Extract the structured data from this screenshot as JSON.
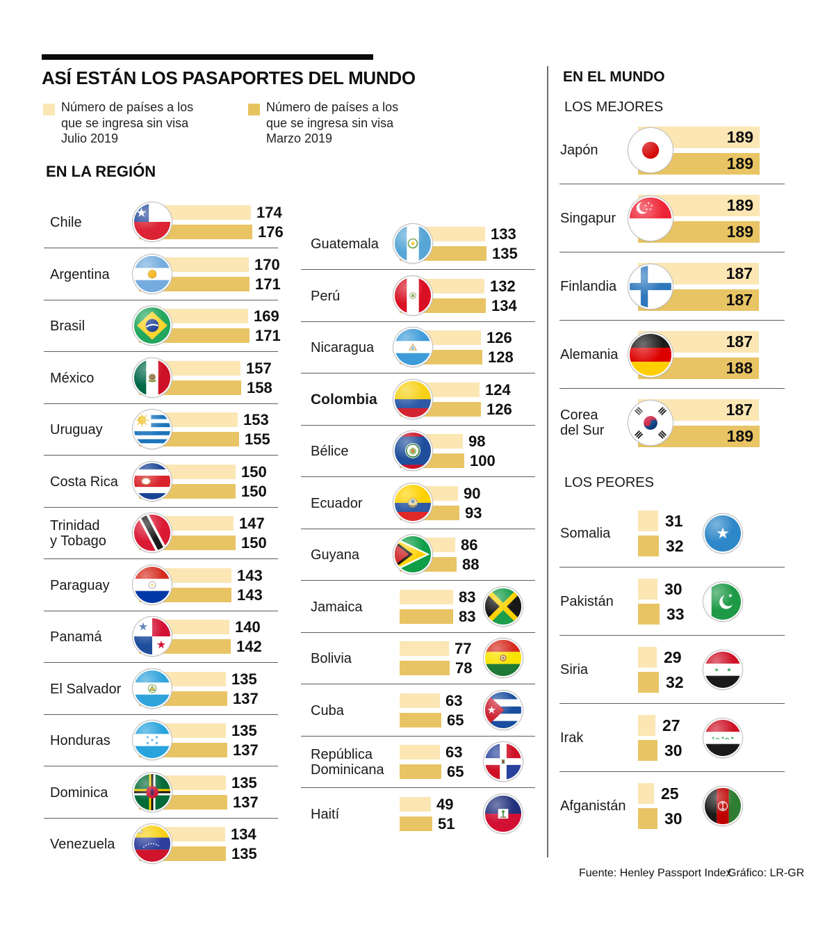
{
  "header": {
    "title": "ASÍ ESTÁN LOS PASAPORTES DEL MUNDO"
  },
  "legend": {
    "items": [
      {
        "id": "julio",
        "color": "#FBE6B4",
        "label": "Número de países a los\nque se ingresa sin visa\nJulio 2019"
      },
      {
        "id": "marzo",
        "color": "#E7C35F",
        "label": "Número de países a los\nque se ingresa sin visa\nMarzo 2019"
      }
    ]
  },
  "colors": {
    "julio_bar": "#FBE6B4",
    "marzo_bar": "#E8C464"
  },
  "region": {
    "title": "EN LA REGIÓN",
    "col1": [
      {
        "name": "Chile",
        "flag": "chile",
        "julio": 174,
        "marzo": 176
      },
      {
        "name": "Argentina",
        "flag": "argentina",
        "julio": 170,
        "marzo": 171
      },
      {
        "name": "Brasil",
        "flag": "brasil",
        "julio": 169,
        "marzo": 171
      },
      {
        "name": "México",
        "flag": "mexico",
        "julio": 157,
        "marzo": 158
      },
      {
        "name": "Uruguay",
        "flag": "uruguay",
        "julio": 153,
        "marzo": 155
      },
      {
        "name": "Costa Rica",
        "flag": "costa_rica",
        "julio": 150,
        "marzo": 150
      },
      {
        "name": "Trinidad\ny Tobago",
        "flag": "trinidad_tobago",
        "julio": 147,
        "marzo": 150
      },
      {
        "name": "Paraguay",
        "flag": "paraguay",
        "julio": 143,
        "marzo": 143
      },
      {
        "name": "Panamá",
        "flag": "panama",
        "julio": 140,
        "marzo": 142
      },
      {
        "name": "El Salvador",
        "flag": "el_salvador",
        "julio": 135,
        "marzo": 137
      },
      {
        "name": "Honduras",
        "flag": "honduras",
        "julio": 135,
        "marzo": 137
      },
      {
        "name": "Dominica",
        "flag": "dominica",
        "julio": 135,
        "marzo": 137
      },
      {
        "name": "Venezuela",
        "flag": "venezuela",
        "julio": 134,
        "marzo": 135
      }
    ],
    "col2": [
      {
        "name": "Guatemala",
        "flag": "guatemala",
        "julio": 133,
        "marzo": 135
      },
      {
        "name": "Perú",
        "flag": "peru",
        "julio": 132,
        "marzo": 134
      },
      {
        "name": "Nicaragua",
        "flag": "nicaragua",
        "julio": 126,
        "marzo": 128
      },
      {
        "name": "Colombia",
        "flag": "colombia",
        "julio": 124,
        "marzo": 126,
        "bold": true
      },
      {
        "name": "Bélice",
        "flag": "belice",
        "julio": 98,
        "marzo": 100
      },
      {
        "name": "Ecuador",
        "flag": "ecuador",
        "julio": 90,
        "marzo": 93
      },
      {
        "name": "Guyana",
        "flag": "guyana",
        "julio": 86,
        "marzo": 88
      },
      {
        "name": "Jamaica",
        "flag": "jamaica",
        "julio": 83,
        "marzo": 83,
        "flag_side": "right"
      },
      {
        "name": "Bolivia",
        "flag": "bolivia",
        "julio": 77,
        "marzo": 78,
        "flag_side": "right"
      },
      {
        "name": "Cuba",
        "flag": "cuba",
        "julio": 63,
        "marzo": 65,
        "flag_side": "right"
      },
      {
        "name": "República\nDominicana",
        "flag": "dominican_republic",
        "julio": 63,
        "marzo": 65,
        "flag_side": "right"
      },
      {
        "name": "Haití",
        "flag": "haiti",
        "julio": 49,
        "marzo": 51,
        "flag_side": "right"
      }
    ]
  },
  "world": {
    "title": "EN EL MUNDO",
    "best_label": "LOS MEJORES",
    "worst_label": "LOS PEORES",
    "best": [
      {
        "name": "Japón",
        "flag": "japan",
        "julio": 189,
        "marzo": 189
      },
      {
        "name": "Singapur",
        "flag": "singapore",
        "julio": 189,
        "marzo": 189
      },
      {
        "name": "Finlandia",
        "flag": "finland",
        "julio": 187,
        "marzo": 187
      },
      {
        "name": "Alemania",
        "flag": "germany",
        "julio": 187,
        "marzo": 188
      },
      {
        "name": "Corea\ndel Sur",
        "flag": "south_korea",
        "julio": 187,
        "marzo": 189
      }
    ],
    "worst": [
      {
        "name": "Somalia",
        "flag": "somalia",
        "julio": 31,
        "marzo": 32
      },
      {
        "name": "Pakistán",
        "flag": "pakistan",
        "julio": 30,
        "marzo": 33
      },
      {
        "name": "Siria",
        "flag": "syria",
        "julio": 29,
        "marzo": 32
      },
      {
        "name": "Irak",
        "flag": "iraq",
        "julio": 27,
        "marzo": 30
      },
      {
        "name": "Afganistán",
        "flag": "afghanistan",
        "julio": 25,
        "marzo": 30
      }
    ]
  },
  "footer": {
    "source": "Fuente: Henley Passport Index",
    "credit": "Gráfico: LR-GR"
  },
  "chart_data": {
    "type": "bar",
    "orientation": "horizontal",
    "title": "ASÍ ESTÁN LOS PASAPORTES DEL MUNDO",
    "series_labels": [
      "Número de países a los que se ingresa sin visa Julio 2019",
      "Número de países a los que se ingresa sin visa Marzo 2019"
    ],
    "xlim": [
      0,
      189
    ],
    "grid": false,
    "legend_position": "top",
    "groups": [
      {
        "name": "EN LA REGIÓN",
        "categories": [
          "Chile",
          "Argentina",
          "Brasil",
          "México",
          "Uruguay",
          "Costa Rica",
          "Trinidad y Tobago",
          "Paraguay",
          "Panamá",
          "El Salvador",
          "Honduras",
          "Dominica",
          "Venezuela",
          "Guatemala",
          "Perú",
          "Nicaragua",
          "Colombia",
          "Bélice",
          "Ecuador",
          "Guyana",
          "Jamaica",
          "Bolivia",
          "Cuba",
          "República Dominicana",
          "Haití"
        ],
        "series": [
          {
            "name": "Julio 2019",
            "values": [
              174,
              170,
              169,
              157,
              153,
              150,
              147,
              143,
              140,
              135,
              135,
              135,
              134,
              133,
              132,
              126,
              124,
              98,
              90,
              86,
              83,
              77,
              63,
              63,
              49
            ]
          },
          {
            "name": "Marzo 2019",
            "values": [
              176,
              171,
              171,
              158,
              155,
              150,
              150,
              143,
              142,
              137,
              137,
              137,
              135,
              135,
              134,
              128,
              126,
              100,
              93,
              88,
              83,
              78,
              65,
              65,
              51
            ]
          }
        ]
      },
      {
        "name": "EN EL MUNDO — LOS MEJORES",
        "categories": [
          "Japón",
          "Singapur",
          "Finlandia",
          "Alemania",
          "Corea del Sur"
        ],
        "series": [
          {
            "name": "Julio 2019",
            "values": [
              189,
              189,
              187,
              187,
              187
            ]
          },
          {
            "name": "Marzo 2019",
            "values": [
              189,
              189,
              187,
              188,
              189
            ]
          }
        ]
      },
      {
        "name": "EN EL MUNDO — LOS PEORES",
        "categories": [
          "Somalia",
          "Pakistán",
          "Siria",
          "Irak",
          "Afganistán"
        ],
        "series": [
          {
            "name": "Julio 2019",
            "values": [
              31,
              30,
              29,
              27,
              25
            ]
          },
          {
            "name": "Marzo 2019",
            "values": [
              32,
              33,
              32,
              30,
              30
            ]
          }
        ]
      }
    ]
  }
}
